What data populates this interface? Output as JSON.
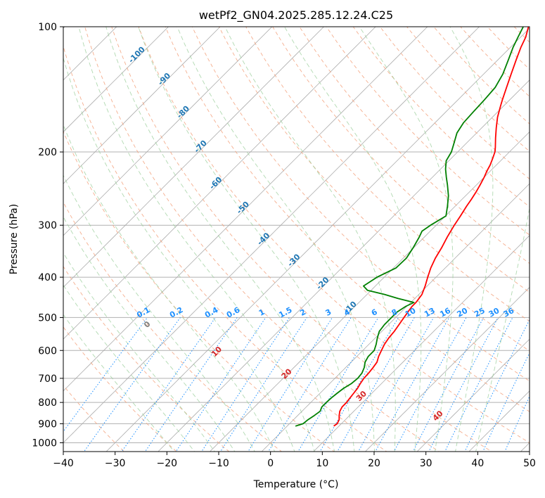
{
  "chart_data": {
    "type": "line",
    "title": "wetPf2_GN04.2025.285.12.24.C25",
    "xlabel": "Temperature (°C)",
    "ylabel": "Pressure (hPa)",
    "xlim": [
      -40,
      50
    ],
    "ylim": [
      1050,
      100
    ],
    "y_scale": "log",
    "grid": true,
    "x_ticks": [
      -40,
      -30,
      -20,
      -10,
      0,
      10,
      20,
      30,
      40,
      50
    ],
    "y_ticks": [
      1000,
      900,
      800,
      700,
      600,
      500,
      400,
      300,
      200,
      100
    ],
    "series": [
      {
        "color": "#ff0000",
        "pressure": [
          912,
          900,
          880,
          860,
          840,
          820,
          800,
          780,
          760,
          740,
          720,
          700,
          680,
          660,
          640,
          620,
          600,
          580,
          560,
          540,
          520,
          500,
          480,
          470,
          460,
          450,
          440,
          420,
          400,
          380,
          360,
          340,
          320,
          300,
          285,
          270,
          260,
          250,
          240,
          230,
          222,
          215,
          208,
          200,
          195,
          185,
          175,
          165,
          155,
          150,
          140,
          130,
          120,
          112,
          106,
          100
        ],
        "values": [
          9.0,
          9.2,
          8.8,
          8.0,
          7.3,
          6.9,
          6.9,
          6.7,
          6.5,
          6.3,
          5.9,
          5.6,
          5.5,
          5.3,
          5.0,
          4.2,
          3.6,
          3.0,
          2.6,
          2.4,
          2.0,
          1.6,
          1.2,
          1.0,
          1.0,
          0.8,
          0.6,
          -0.4,
          -1.6,
          -2.8,
          -3.8,
          -4.6,
          -5.6,
          -6.5,
          -7.1,
          -7.8,
          -8.2,
          -8.7,
          -9.3,
          -10.0,
          -10.7,
          -11.2,
          -11.9,
          -12.8,
          -13.6,
          -15.4,
          -17.2,
          -19.0,
          -20.6,
          -21.4,
          -23.0,
          -24.7,
          -26.5,
          -28.0,
          -29.0,
          -30.5
        ]
      },
      {
        "color": "#008000",
        "pressure": [
          912,
          900,
          880,
          860,
          840,
          820,
          800,
          780,
          760,
          740,
          720,
          700,
          680,
          660,
          640,
          620,
          600,
          580,
          560,
          540,
          520,
          500,
          485,
          470,
          460,
          450,
          440,
          430,
          420,
          400,
          380,
          360,
          340,
          320,
          310,
          300,
          285,
          270,
          255,
          240,
          230,
          220,
          210,
          200,
          192,
          180,
          170,
          160,
          150,
          140,
          130,
          120,
          112,
          106,
          100
        ],
        "values": [
          1.6,
          2.6,
          2.8,
          3.2,
          3.5,
          3.0,
          3.0,
          3.1,
          3.3,
          3.6,
          4.2,
          4.4,
          4.2,
          3.6,
          2.7,
          2.2,
          2.2,
          1.4,
          0.4,
          -0.5,
          -0.8,
          -0.8,
          -0.8,
          -0.2,
          0.6,
          -3.2,
          -6.6,
          -10.7,
          -12.3,
          -11.4,
          -9.5,
          -9.4,
          -10.1,
          -11.0,
          -11.6,
          -11.1,
          -9.9,
          -11.5,
          -13.3,
          -15.6,
          -17.3,
          -19.0,
          -20.5,
          -21.2,
          -22.2,
          -23.8,
          -24.5,
          -24.7,
          -24.9,
          -25.2,
          -26.3,
          -28.0,
          -29.5,
          -30.5,
          -31.5
        ]
      }
    ],
    "isotherm_labels": [
      "-100",
      "-90",
      "-80",
      "-70",
      "-60",
      "-50",
      "-40",
      "-30",
      "-20",
      "-10"
    ],
    "mixing_ratio_labels": [
      "0.1",
      "0.2",
      "0.4",
      "0.6",
      "1",
      "1.5",
      "2",
      "3",
      "4",
      "6",
      "8",
      "10",
      "13",
      "16",
      "20",
      "25",
      "30",
      "36"
    ],
    "dry_adiabat_labels": [
      "0",
      "10",
      "20",
      "30",
      "40"
    ]
  }
}
